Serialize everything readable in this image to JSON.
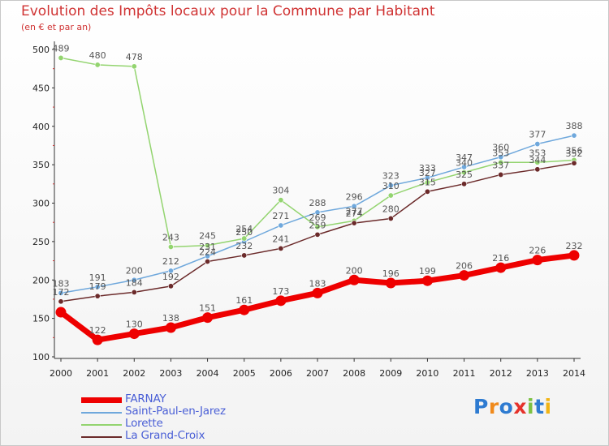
{
  "chart_data": {
    "type": "line",
    "title": "Evolution des Impôts locaux pour la Commune par Habitant",
    "subtitle": "(en € et par an)",
    "xlabel": "",
    "ylabel": "",
    "ylim": [
      100,
      500
    ],
    "yticks": [
      100,
      150,
      200,
      250,
      300,
      350,
      400,
      450,
      500
    ],
    "x": [
      "2000",
      "2001",
      "2002",
      "2003",
      "2004",
      "2005",
      "2006",
      "2007",
      "2008",
      "2009",
      "2010",
      "2011",
      "2012",
      "2013",
      "2014"
    ],
    "legend_position": "bottom-left",
    "series": [
      {
        "name": "FARNAY",
        "color": "#ee0000",
        "values": [
          158,
          122,
          130,
          138,
          151,
          161,
          173,
          183,
          200,
          196,
          199,
          206,
          216,
          226,
          232
        ]
      },
      {
        "name": "Saint-Paul-en-Jarez",
        "color": "#6fa8dc",
        "values": [
          183,
          191,
          200,
          212,
          231,
          250,
          271,
          288,
          296,
          323,
          333,
          347,
          360,
          377,
          388
        ]
      },
      {
        "name": "Lorette",
        "color": "#93d46f",
        "values": [
          489,
          480,
          478,
          243,
          245,
          254,
          304,
          269,
          277,
          310,
          327,
          340,
          353,
          353,
          356
        ]
      },
      {
        "name": "La Grand-Croix",
        "color": "#6b2a2a",
        "values": [
          172,
          179,
          184,
          192,
          224,
          232,
          241,
          259,
          274,
          280,
          315,
          325,
          337,
          344,
          352
        ]
      }
    ],
    "value_labels": {
      "FARNAY": [
        "",
        "122",
        "130",
        "138",
        "151",
        "161",
        "173",
        "183",
        "200",
        "196",
        "199",
        "206",
        "216",
        "226",
        "232"
      ],
      "Saint-Paul-en-Jarez": [
        "183",
        "191",
        "200",
        "212",
        "231",
        "250",
        "271",
        "288",
        "296",
        "323",
        "333",
        "347",
        "360",
        "377",
        "388"
      ],
      "Lorette": [
        "489",
        "480",
        "478",
        "243",
        "245",
        "254",
        "304",
        "269",
        "277",
        "310",
        "327",
        "340",
        "353",
        "353",
        "356"
      ],
      "La Grand-Croix": [
        "172",
        "179",
        "184",
        "192",
        "224",
        "232",
        "241",
        "259",
        "274",
        "280",
        "315",
        "325",
        "337",
        "344",
        "352"
      ]
    }
  },
  "legend": {
    "items": [
      "FARNAY",
      "Saint-Paul-en-Jarez",
      "Lorette",
      "La Grand-Croix"
    ]
  },
  "logo": {
    "text": "Proxiti"
  }
}
